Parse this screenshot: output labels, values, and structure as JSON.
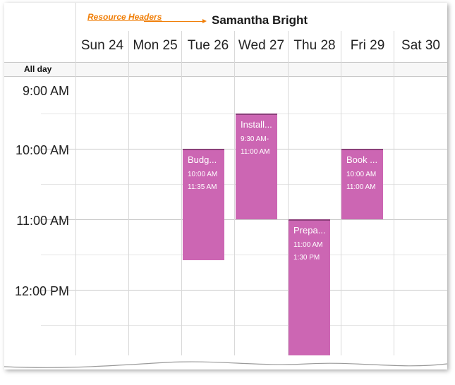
{
  "callout": {
    "label": "Resource Headers"
  },
  "resource": {
    "name": "Samantha Bright"
  },
  "days": [
    {
      "label": "Sun 24"
    },
    {
      "label": "Mon 25"
    },
    {
      "label": "Tue 26"
    },
    {
      "label": "Wed 27"
    },
    {
      "label": "Thu 28"
    },
    {
      "label": "Fri 29"
    },
    {
      "label": "Sat 30"
    }
  ],
  "allday": {
    "label": "All day"
  },
  "times": [
    "9:00 AM",
    "10:00 AM",
    "11:00 AM",
    "12:00 PM"
  ],
  "appointments": [
    {
      "title": "Budg...",
      "start": "10:00 AM",
      "end": "11:35 AM"
    },
    {
      "title": "Install...",
      "start": "9:30 AM-",
      "end": "11:00 AM"
    },
    {
      "title": "Prepa...",
      "start": "11:00 AM",
      "end": "1:30 PM"
    },
    {
      "title": "Book ...",
      "start": "10:00 AM",
      "end": "11:00 AM"
    }
  ],
  "colors": {
    "appointment": "#cc66b3",
    "callout": "#f07f09"
  }
}
